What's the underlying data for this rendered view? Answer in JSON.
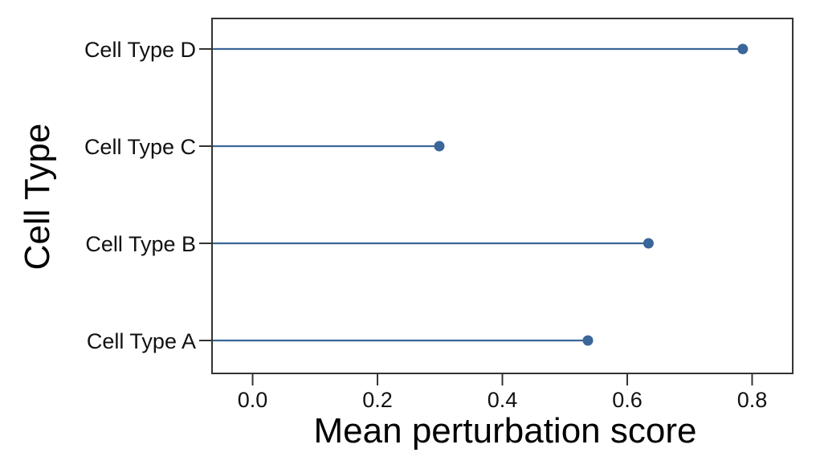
{
  "chart_data": {
    "type": "lollipop",
    "orientation": "horizontal",
    "title": "",
    "xlabel": "Mean perturbation score",
    "ylabel": "Cell Type",
    "categories": [
      "Cell Type A",
      "Cell Type B",
      "Cell Type C",
      "Cell Type D"
    ],
    "values": [
      0.537,
      0.634,
      0.299,
      0.785
    ],
    "xlim": [
      -0.065,
      0.865
    ],
    "xticks": [
      0.0,
      0.2,
      0.4,
      0.6,
      0.8
    ],
    "xtick_labels": [
      "0.0",
      "0.2",
      "0.4",
      "0.6",
      "0.8"
    ],
    "grid": false,
    "legend": "none",
    "colors": {
      "series": "#3a6699",
      "frame": "#333333",
      "text": "#111111"
    }
  }
}
